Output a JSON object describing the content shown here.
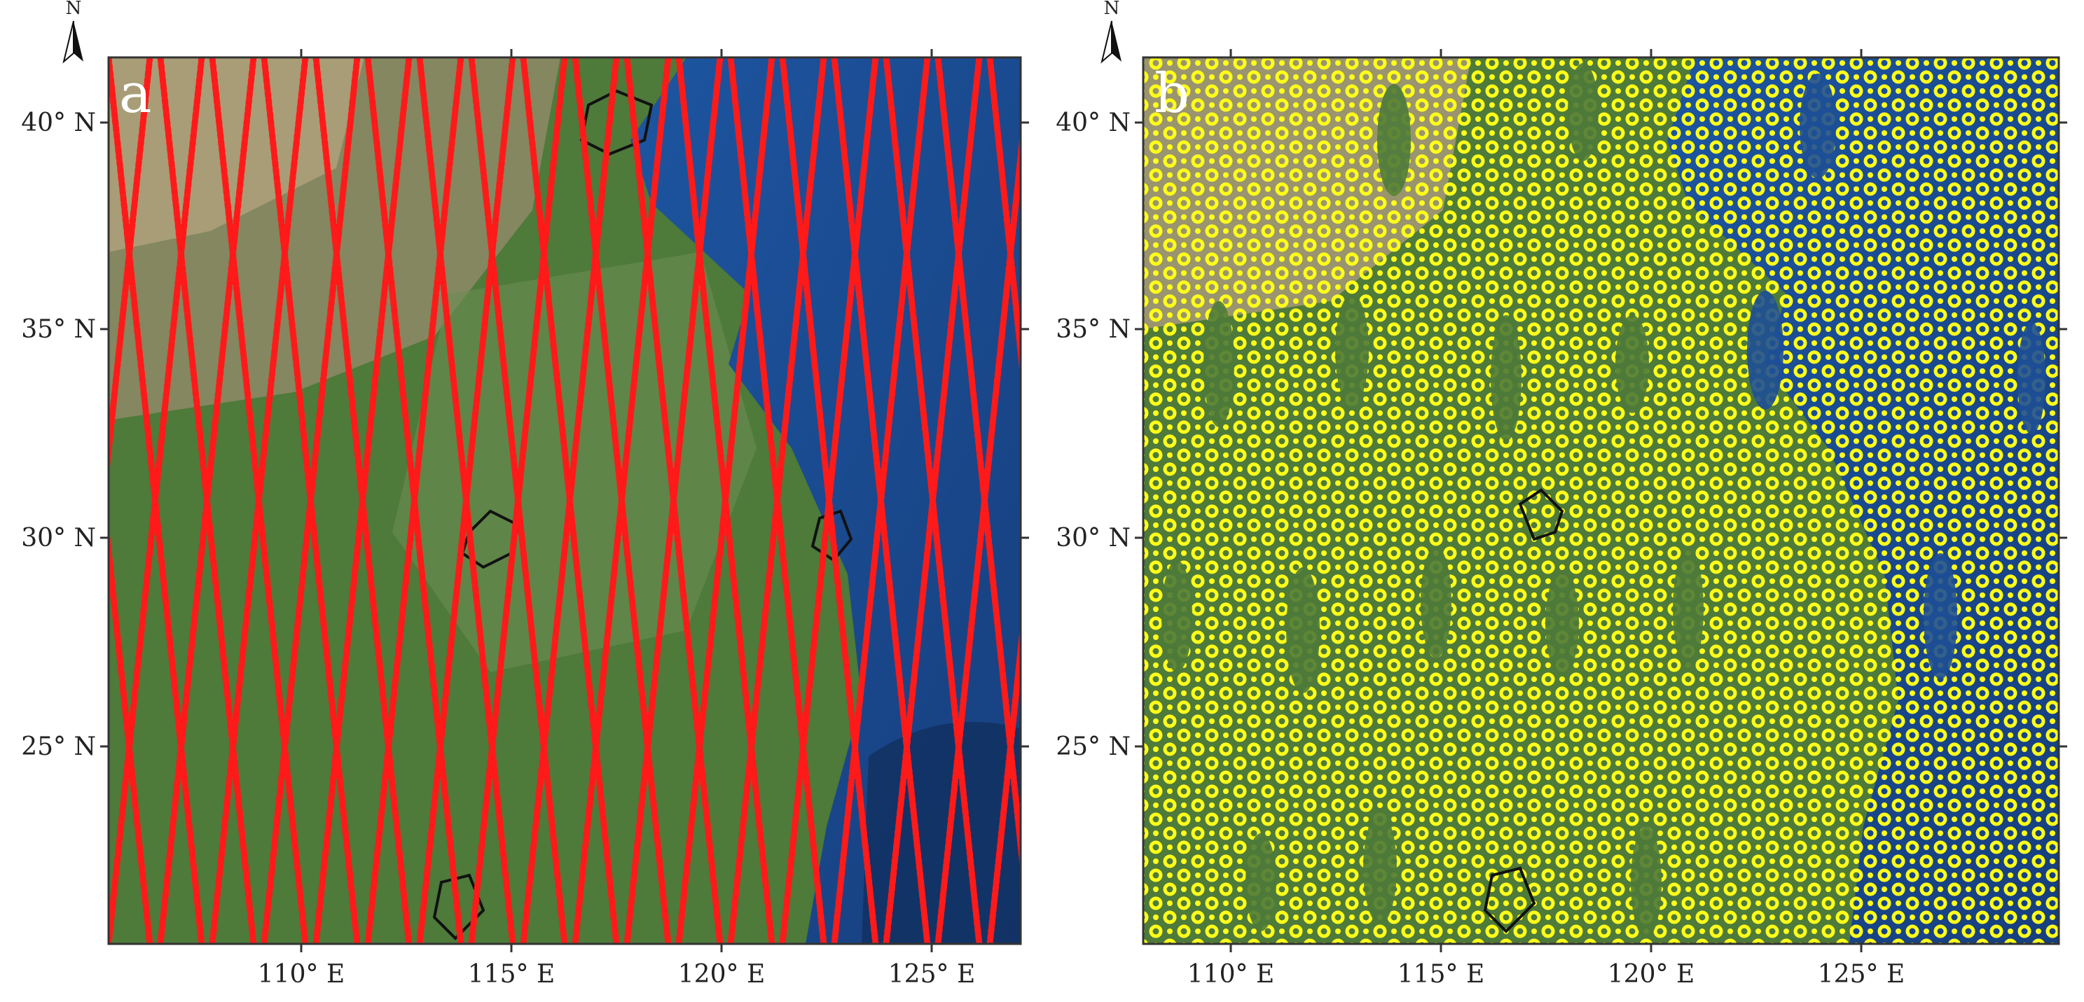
{
  "panels": [
    {
      "id": "a",
      "label": "a",
      "north_label": "N",
      "track_color": "#ff1a1a",
      "x_ticks": [
        "110° E",
        "115° E",
        "120° E",
        "125° E"
      ],
      "y_ticks": [
        "40° N",
        "35° N",
        "30° N",
        "25° N"
      ]
    },
    {
      "id": "b",
      "label": "b",
      "north_label": "N",
      "track_color": "#ffff1a",
      "x_ticks": [
        "110° E",
        "115° E",
        "120° E",
        "125° E"
      ],
      "y_ticks": [
        "40° N",
        "35° N",
        "30° N",
        "25° N"
      ]
    }
  ],
  "colors": {
    "land_green": "#4e7a3a",
    "land_dry": "#a89a78",
    "ocean": "#1e4f96",
    "boundary": "#111111"
  },
  "icons": [
    "north-arrow-icon"
  ]
}
